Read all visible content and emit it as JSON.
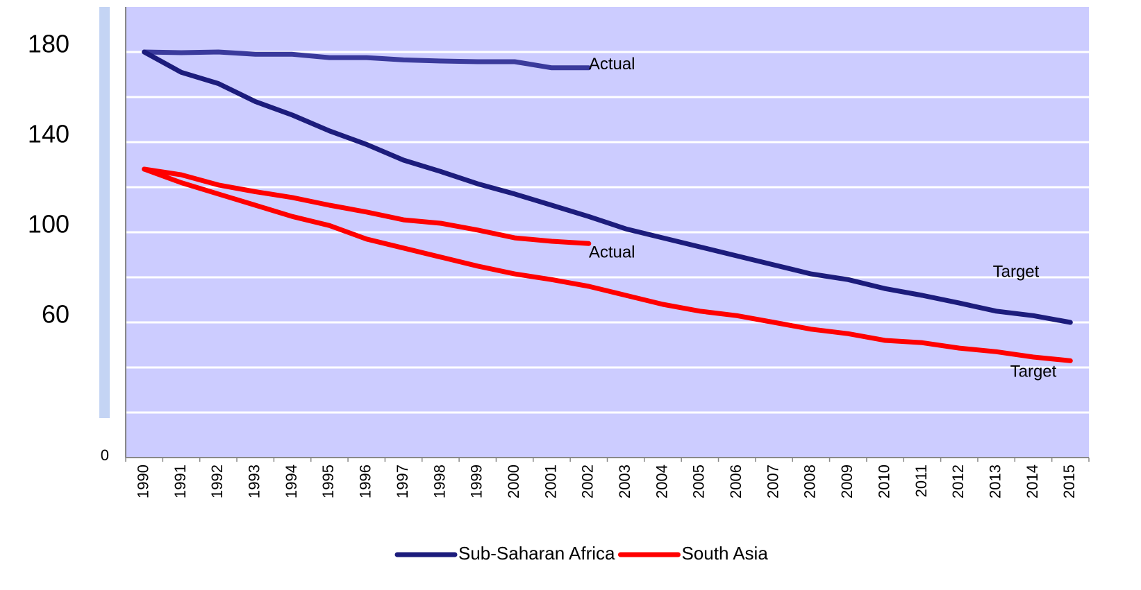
{
  "chart_data": {
    "type": "line",
    "categories": [
      "1990",
      "1991",
      "1992",
      "1993",
      "1994",
      "1995",
      "1996",
      "1997",
      "1998",
      "1999",
      "2000",
      "2001",
      "2002",
      "2003",
      "2004",
      "2005",
      "2006",
      "2007",
      "2008",
      "2009",
      "2010",
      "2011",
      "2012",
      "2013",
      "2014",
      "2015"
    ],
    "series": [
      {
        "name": "Sub-Saharan Africa",
        "color": "#1c1c7c",
        "actual_color": "#3a3a9c",
        "actual_label": "Actual",
        "target_label": "Target",
        "actual": [
          180,
          179.7,
          180,
          179,
          179,
          177.5,
          177.5,
          176.5,
          176,
          175.7,
          175.7,
          173,
          173,
          null,
          null,
          null,
          null,
          null,
          null,
          null,
          null,
          null,
          null,
          null,
          null,
          null
        ],
        "target": [
          180,
          171,
          166,
          158,
          152,
          145,
          139,
          132,
          127,
          121.5,
          117,
          112,
          107,
          101.5,
          97.5,
          93.5,
          89.5,
          85.5,
          81.5,
          79,
          75,
          72,
          68.6,
          65,
          63,
          60
        ]
      },
      {
        "name": "South Asia",
        "color": "#ff0000",
        "actual_color": "#ff0000",
        "actual_label": "Actual",
        "target_label": "Target",
        "actual": [
          128,
          125.5,
          121,
          118,
          115.4,
          112,
          109,
          105.5,
          104,
          101,
          97.5,
          96,
          95,
          null,
          null,
          null,
          null,
          null,
          null,
          null,
          null,
          null,
          null,
          null,
          null,
          null
        ],
        "target": [
          128,
          122,
          117,
          112,
          107,
          103,
          97,
          93,
          89,
          85,
          81.5,
          79,
          76,
          72,
          68,
          65,
          63,
          60,
          57,
          55,
          52,
          51,
          48.6,
          47,
          44.6,
          43
        ]
      }
    ],
    "ylim": [
      0,
      200
    ],
    "yticks": [
      0,
      60,
      100,
      140,
      180
    ],
    "ygrid": [
      20,
      40,
      60,
      80,
      100,
      120,
      140,
      160,
      180
    ],
    "grid": true,
    "background": "#ccccff",
    "legend": "bottom"
  }
}
